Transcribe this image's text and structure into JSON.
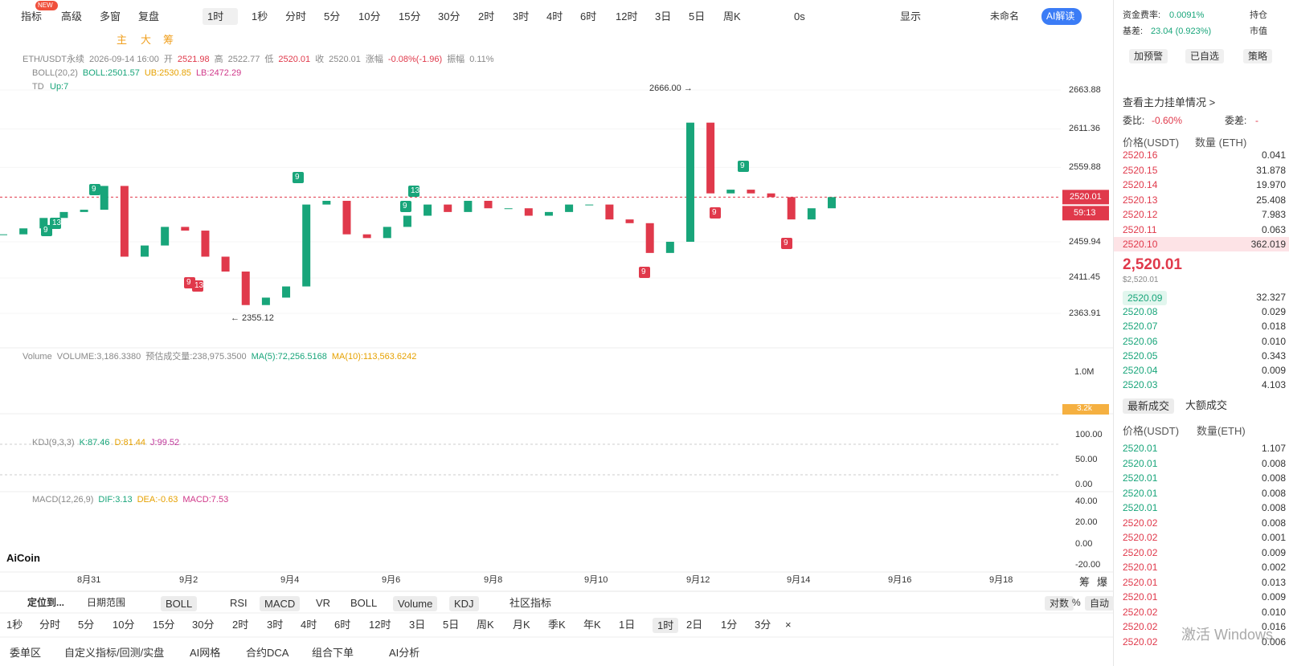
{
  "top_bar": {
    "new_badge": "NEW",
    "left": [
      "指标",
      "高级",
      "多窗",
      "复盘"
    ],
    "interval": "1时",
    "intervals": [
      "1秒",
      "分时",
      "5分",
      "10分",
      "15分",
      "30分",
      "2时",
      "3时",
      "4时",
      "6时",
      "12时",
      "3日",
      "5日",
      "周K"
    ],
    "countdown": "0s",
    "display": "显示",
    "layout_name": "未命名",
    "ai": "AI解读"
  },
  "draw_tools": [
    "主",
    "大",
    "筹"
  ],
  "ohlc": [
    "ETH/USDT永续",
    "2026-09-14 16:00",
    "开",
    "2521.98",
    "高",
    "2522.77",
    "低",
    "2520.01",
    "收",
    "2520.01",
    "涨幅",
    "-0.08%(-1.96)",
    "振幅",
    "0.11%"
  ],
  "boll": [
    "BOLL(20,2)",
    "BOLL:2501.57",
    "UB:2530.85",
    "LB:2472.29"
  ],
  "td": {
    "name": "TD",
    "up": "Up:7",
    "markers": [
      "13",
      "9",
      "9",
      "9",
      "13",
      "9",
      "9",
      "9",
      "13",
      "9",
      "9",
      "9"
    ]
  },
  "price_axis": {
    "ticks": [
      2663.88,
      2611.36,
      2559.88,
      2459.94,
      2411.45,
      2363.91
    ],
    "last": 2520.01,
    "countdown": "59:13",
    "high_note": "2666.00 →",
    "low_note": "← 2355.12"
  },
  "price_closes": [
    2470,
    2478,
    2492,
    2500,
    2503,
    2535,
    2440,
    2455,
    2480,
    2475,
    2440,
    2420,
    2375,
    2385,
    2400,
    2510,
    2515,
    2470,
    2465,
    2480,
    2495,
    2510,
    2500,
    2515,
    2505,
    2505,
    2495,
    2500,
    2510,
    2510,
    2490,
    2485,
    2445,
    2460,
    2620,
    2525,
    2530,
    2525,
    2520,
    2490,
    2505,
    2520.01
  ],
  "dates": [
    "8月31",
    "9月2",
    "9月4",
    "9月6",
    "9月8",
    "9月10",
    "9月12",
    "9月14",
    "9月16",
    "9月18"
  ],
  "volume": {
    "header": [
      "Volume",
      "VOLUME:3,186.3380",
      "预估成交量:238,975.3500",
      "MA(5):72,256.5168",
      "MA(10):113,563.6242"
    ],
    "axis": "1.0M",
    "last": "3.2k"
  },
  "kdj": {
    "header": [
      "KDJ(9,3,3)",
      "K:87.46",
      "D:81.44",
      "J:99.52"
    ],
    "ticks": [
      "100.00",
      "50.00",
      "0.00"
    ]
  },
  "macd": {
    "header": [
      "MACD(12,26,9)",
      "DIF:3.13",
      "DEA:-0.63",
      "MACD:7.53"
    ],
    "ticks": [
      "40.00",
      "20.00",
      "0.00",
      "-20.00"
    ]
  },
  "logo": "AiCoin",
  "axis_corner": [
    "筹",
    "爆"
  ],
  "bottom_toolbar": {
    "locate": "定位到...",
    "date_range": "日期范围",
    "indicators": [
      "BOLL",
      "RSI",
      "MACD",
      "VR",
      "BOLL",
      "Volume",
      "KDJ"
    ],
    "community": "社区指标",
    "right": [
      "对数",
      "%",
      "自动"
    ]
  },
  "periods": [
    "1秒",
    "分时",
    "5分",
    "10分",
    "15分",
    "30分",
    "2时",
    "3时",
    "4时",
    "6时",
    "12时",
    "3日",
    "5日",
    "周K",
    "月K",
    "季K",
    "年K",
    "1日",
    "1时",
    "2日",
    "1分",
    "3分",
    "×"
  ],
  "bottom_tabs": [
    "委单区",
    "自定义指标/回测/实盘",
    "AI网格",
    "合约DCA",
    "组合下单",
    "AI分析"
  ],
  "watermark": "激活 Windows",
  "side_panel": {
    "funding_label": "资金费率:",
    "funding": "0.0091%",
    "oi": "持仓",
    "basis_label": "基差:",
    "basis": "23.04 (0.923%)",
    "mcap": "市值",
    "buttons": [
      "加预警",
      "已自选",
      "策略"
    ],
    "depth_link": "查看主力挂单情况 >",
    "ratio_label": "委比:",
    "ratio": "-0.60%",
    "diff_label": "委差:",
    "diff": "-",
    "book_headers": [
      "价格(USDT)",
      "数量 (ETH)"
    ],
    "asks": [
      [
        "2520.16",
        "0.041"
      ],
      [
        "2520.15",
        "31.878"
      ],
      [
        "2520.14",
        "19.970"
      ],
      [
        "2520.13",
        "25.408"
      ],
      [
        "2520.12",
        "7.983"
      ],
      [
        "2520.11",
        "0.063"
      ],
      [
        "2520.10",
        "362.019"
      ]
    ],
    "last": "2,520.01",
    "last_usd": "$2,520.01",
    "bids": [
      [
        "2520.09",
        "32.327"
      ],
      [
        "2520.08",
        "0.029"
      ],
      [
        "2520.07",
        "0.018"
      ],
      [
        "2520.06",
        "0.010"
      ],
      [
        "2520.05",
        "0.343"
      ],
      [
        "2520.04",
        "0.009"
      ],
      [
        "2520.03",
        "4.103"
      ]
    ],
    "trade_tabs": [
      "最新成交",
      "大额成交"
    ],
    "trade_headers": [
      "价格(USDT)",
      "数量(ETH)"
    ],
    "trades": [
      [
        "2520.01",
        "1.107"
      ],
      [
        "2520.01",
        "0.008"
      ],
      [
        "2520.01",
        "0.008"
      ],
      [
        "2520.01",
        "0.008"
      ],
      [
        "2520.01",
        "0.008"
      ],
      [
        "2520.02",
        "0.008"
      ],
      [
        "2520.02",
        "0.001"
      ],
      [
        "2520.02",
        "0.009"
      ],
      [
        "2520.01",
        "0.002"
      ],
      [
        "2520.01",
        "0.013"
      ],
      [
        "2520.01",
        "0.009"
      ],
      [
        "2520.02",
        "0.010"
      ],
      [
        "2520.02",
        "0.016"
      ],
      [
        "2520.02",
        "0.006"
      ]
    ],
    "trade_sides": [
      "buy",
      "buy",
      "buy",
      "buy",
      "buy",
      "sell",
      "sell",
      "sell",
      "sell",
      "sell",
      "sell",
      "sell",
      "sell",
      "sell"
    ]
  }
}
